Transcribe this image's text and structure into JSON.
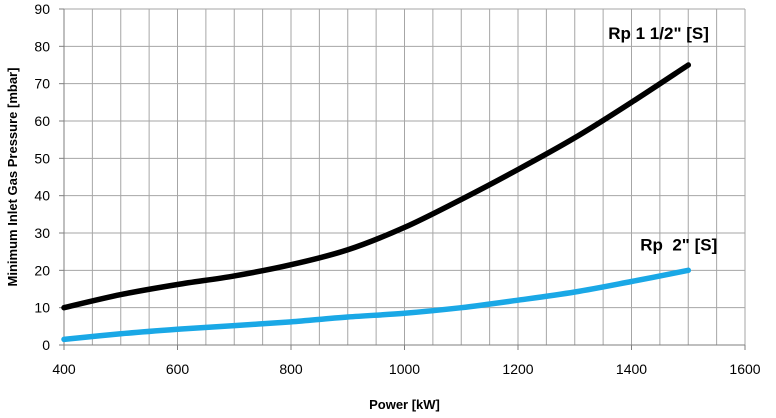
{
  "chart_data": {
    "type": "line",
    "title": "",
    "xlabel": "Power [kW]",
    "ylabel": "Minimum Inlet Gas Pressure [mbar]",
    "xlim": [
      400,
      1600
    ],
    "ylim": [
      0,
      90
    ],
    "x_ticks": [
      400,
      600,
      800,
      1000,
      1200,
      1400,
      1600
    ],
    "y_ticks": [
      0,
      10,
      20,
      30,
      40,
      50,
      60,
      70,
      80,
      90
    ],
    "x_grid_step": 50,
    "y_grid_step": 10,
    "grid": true,
    "legend": "none (series labelled directly on chart)",
    "series": [
      {
        "name": "Rp 1 1/2\" [S]",
        "color": "#000000",
        "x": [
          400,
          500,
          600,
          700,
          800,
          900,
          1000,
          1100,
          1200,
          1300,
          1400,
          1500
        ],
        "y": [
          10,
          13.5,
          16.2,
          18.5,
          21.5,
          25.5,
          31.5,
          39,
          47,
          55.5,
          65,
          75
        ]
      },
      {
        "name": "Rp  2\" [S]",
        "color": "#1aa8e6",
        "x": [
          400,
          500,
          600,
          700,
          800,
          900,
          1000,
          1100,
          1200,
          1300,
          1400,
          1500
        ],
        "y": [
          1.5,
          3,
          4.2,
          5.2,
          6.2,
          7.5,
          8.5,
          10,
          12,
          14.2,
          17,
          20
        ]
      }
    ]
  }
}
